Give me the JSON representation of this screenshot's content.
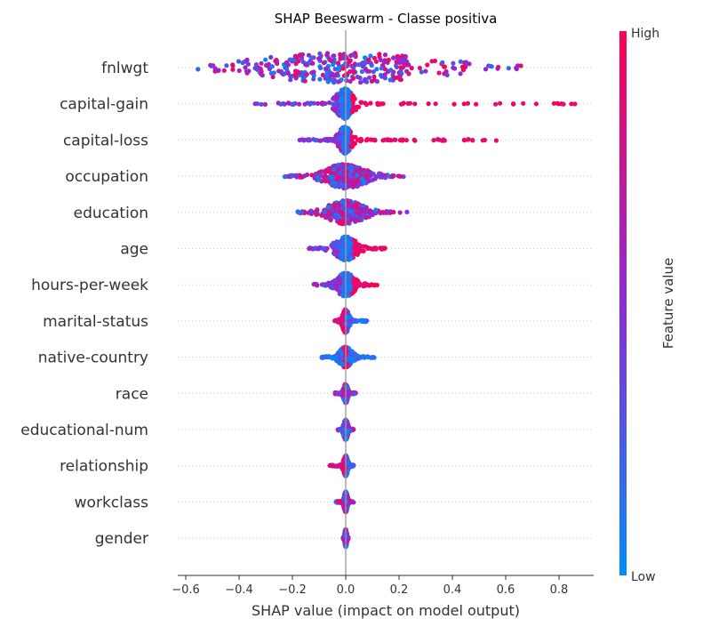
{
  "chart_data": {
    "type": "scatter",
    "subtype": "shap-beeswarm",
    "title": "SHAP Beeswarm - Classe positiva",
    "xlabel": "SHAP value (impact on model output)",
    "xlim": [
      -0.63,
      0.93
    ],
    "xticks": [
      -0.6,
      -0.4,
      -0.2,
      0.0,
      0.2,
      0.4,
      0.6,
      0.8
    ],
    "xtick_labels": [
      "−0.6",
      "−0.4",
      "−0.2",
      "0.0",
      "0.2",
      "0.4",
      "0.6",
      "0.8"
    ],
    "grid": false,
    "row_guides": "dotted",
    "zero_line": 0.0,
    "colorbar": {
      "label": "Feature value",
      "high_label": "High",
      "low_label": "Low",
      "high_color": "#ff0052",
      "mid_color": "#8f2ad8",
      "low_color": "#008bfb"
    },
    "features": [
      {
        "name": "fnlwgt",
        "min": -0.56,
        "max": 0.67,
        "peak": 0.0,
        "spread": 0.42,
        "max_thick": 0.9,
        "coloring": "mixed"
      },
      {
        "name": "capital-gain",
        "min": -0.34,
        "max": 0.86,
        "peak": -0.003,
        "spread": 0.04,
        "max_thick": 0.9,
        "coloring": "low-left-high-right"
      },
      {
        "name": "capital-loss",
        "min": -0.18,
        "max": 0.62,
        "peak": -0.002,
        "spread": 0.03,
        "max_thick": 0.8,
        "coloring": "low-left-high-right"
      },
      {
        "name": "occupation",
        "min": -0.23,
        "max": 0.22,
        "peak": 0.0,
        "spread": 0.09,
        "max_thick": 0.75,
        "coloring": "mixed"
      },
      {
        "name": "education",
        "min": -0.18,
        "max": 0.23,
        "peak": 0.0,
        "spread": 0.08,
        "max_thick": 0.7,
        "coloring": "mixed"
      },
      {
        "name": "age",
        "min": -0.14,
        "max": 0.15,
        "peak": 0.0,
        "spread": 0.05,
        "max_thick": 0.7,
        "coloring": "low-left-high-right"
      },
      {
        "name": "hours-per-week",
        "min": -0.12,
        "max": 0.12,
        "peak": 0.0,
        "spread": 0.04,
        "max_thick": 0.7,
        "coloring": "low-left-high-right"
      },
      {
        "name": "marital-status",
        "min": -0.05,
        "max": 0.08,
        "peak": 0.0,
        "spread": 0.015,
        "max_thick": 0.7,
        "coloring": "high-left-low-right"
      },
      {
        "name": "native-country",
        "min": -0.09,
        "max": 0.11,
        "peak": 0.0,
        "spread": 0.03,
        "max_thick": 0.6,
        "coloring": "high-center-low-sides"
      },
      {
        "name": "race",
        "min": -0.04,
        "max": 0.04,
        "peak": 0.0,
        "spread": 0.01,
        "max_thick": 0.55,
        "coloring": "mixed"
      },
      {
        "name": "educational-num",
        "min": -0.03,
        "max": 0.03,
        "peak": 0.0,
        "spread": 0.01,
        "max_thick": 0.6,
        "coloring": "mixed"
      },
      {
        "name": "relationship",
        "min": -0.06,
        "max": 0.03,
        "peak": 0.0,
        "spread": 0.01,
        "max_thick": 0.6,
        "coloring": "high-left-low-right"
      },
      {
        "name": "workclass",
        "min": -0.04,
        "max": 0.03,
        "peak": 0.0,
        "spread": 0.008,
        "max_thick": 0.6,
        "coloring": "mixed"
      },
      {
        "name": "gender",
        "min": -0.01,
        "max": 0.01,
        "peak": 0.0,
        "spread": 0.005,
        "max_thick": 0.5,
        "coloring": "mixed"
      }
    ]
  }
}
